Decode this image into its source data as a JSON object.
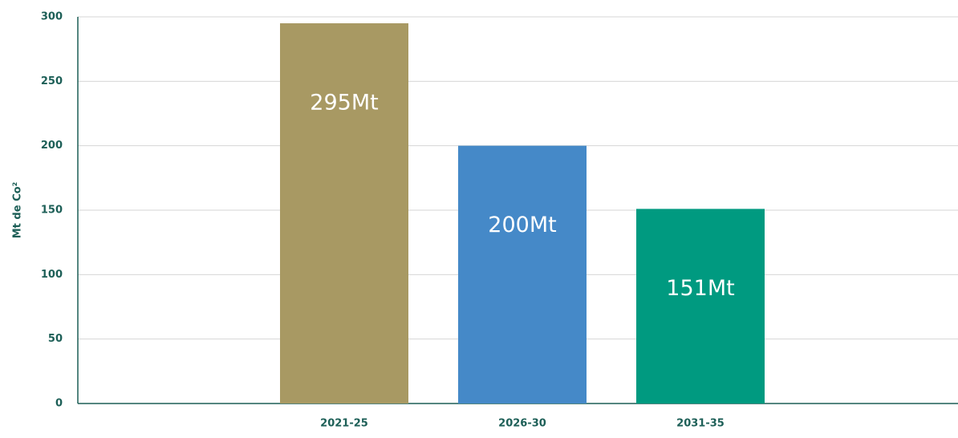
{
  "chart_data": {
    "type": "bar",
    "y_label": "Mt de Co²",
    "categories": [
      "2021-25",
      "2026-30",
      "2031-35"
    ],
    "values": [
      295,
      200,
      151
    ],
    "value_labels": [
      "295Mt",
      "200Mt",
      "151Mt"
    ],
    "colors": [
      "#a89963",
      "#4589c8",
      "#009a80"
    ],
    "ylim": [
      0,
      300
    ],
    "yticks": [
      0,
      50,
      100,
      150,
      200,
      250,
      300
    ],
    "grid": true
  }
}
